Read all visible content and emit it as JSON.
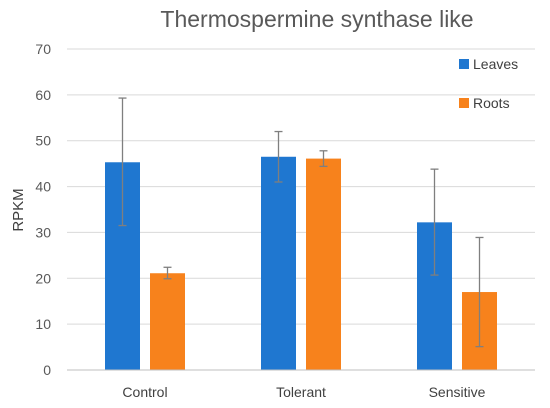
{
  "chart_data": {
    "type": "bar",
    "title": "Thermospermine synthase like",
    "xlabel": "",
    "ylabel": "RPKM",
    "ylim": [
      0,
      70
    ],
    "yticks": [
      0,
      10,
      20,
      30,
      40,
      50,
      60,
      70
    ],
    "grid": true,
    "legend_position": "top-right",
    "categories": [
      "Control",
      "Tolerant",
      "Sensitive"
    ],
    "series": [
      {
        "name": "Leaves",
        "color": "#1f77d0",
        "values": [
          45.3,
          46.5,
          32.2
        ],
        "error_low": [
          31.5,
          41.0,
          20.7
        ],
        "error_high": [
          59.3,
          52.0,
          43.8
        ]
      },
      {
        "name": "Roots",
        "color": "#f7821c",
        "values": [
          21.1,
          46.1,
          17.0
        ],
        "error_low": [
          19.9,
          44.4,
          5.1
        ],
        "error_high": [
          22.4,
          47.8,
          28.9
        ]
      }
    ]
  }
}
